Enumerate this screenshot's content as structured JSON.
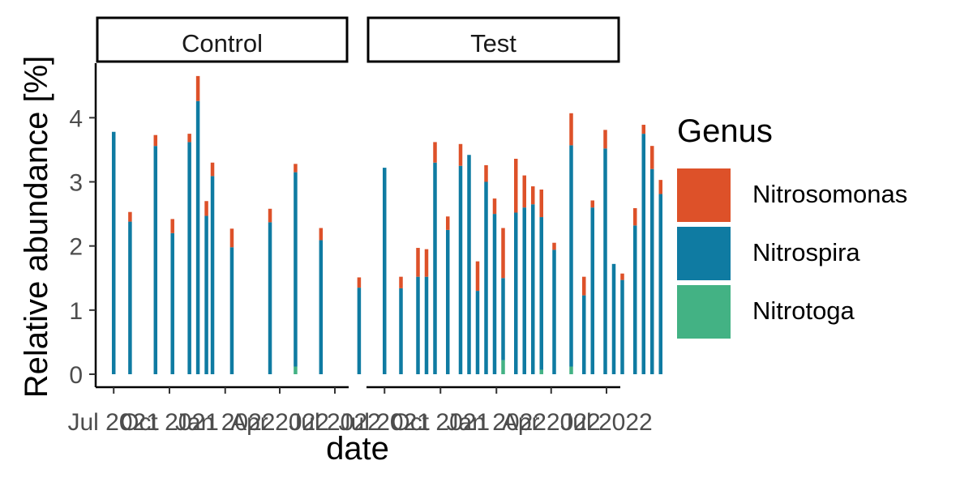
{
  "chart_data": {
    "type": "bar",
    "stacked": true,
    "ylabel": "Relative abundance [%]",
    "xlabel": "date",
    "ylim": [
      0,
      4.8
    ],
    "yticks": [
      0,
      1,
      2,
      3,
      4
    ],
    "xlim": [
      "2021-06-20",
      "2022-07-05"
    ],
    "xticks": [
      {
        "date": "2021-07-01",
        "label": "Jul 2021"
      },
      {
        "date": "2021-10-01",
        "label": "Oct 2021"
      },
      {
        "date": "2022-01-01",
        "label": "Jan 2022"
      },
      {
        "date": "2022-04-01",
        "label": "Apr 2022"
      },
      {
        "date": "2022-07-01",
        "label": "Jul 2022"
      }
    ],
    "grid": false,
    "legend_position": "right",
    "legend_title": "Genus",
    "series": [
      {
        "name": "Nitrosomonas",
        "color": "#DD5129"
      },
      {
        "name": "Nitrospira",
        "color": "#0F7BA2"
      },
      {
        "name": "Nitrotoga",
        "color": "#43B284"
      }
    ],
    "panels": [
      {
        "title": "Control",
        "bars": [
          {
            "date": "2021-07-01",
            "Nitrotoga": 0.0,
            "Nitrospira": 3.78,
            "Nitrosomonas": 0.0
          },
          {
            "date": "2021-07-28",
            "Nitrotoga": 0.0,
            "Nitrospira": 2.38,
            "Nitrosomonas": 0.15
          },
          {
            "date": "2021-09-08",
            "Nitrotoga": 0.0,
            "Nitrospira": 3.56,
            "Nitrosomonas": 0.17
          },
          {
            "date": "2021-10-06",
            "Nitrotoga": 0.0,
            "Nitrospira": 2.2,
            "Nitrosomonas": 0.22
          },
          {
            "date": "2021-11-03",
            "Nitrotoga": 0.0,
            "Nitrospira": 3.62,
            "Nitrosomonas": 0.13
          },
          {
            "date": "2021-11-17",
            "Nitrotoga": 0.0,
            "Nitrospira": 4.26,
            "Nitrosomonas": 0.39
          },
          {
            "date": "2021-12-01",
            "Nitrotoga": 0.0,
            "Nitrospira": 2.47,
            "Nitrosomonas": 0.23
          },
          {
            "date": "2021-12-11",
            "Nitrotoga": 0.0,
            "Nitrospira": 3.09,
            "Nitrosomonas": 0.21
          },
          {
            "date": "2022-01-12",
            "Nitrotoga": 0.0,
            "Nitrospira": 1.98,
            "Nitrosomonas": 0.29
          },
          {
            "date": "2022-03-16",
            "Nitrotoga": 0.0,
            "Nitrospira": 2.37,
            "Nitrosomonas": 0.21
          },
          {
            "date": "2022-04-27",
            "Nitrotoga": 0.12,
            "Nitrospira": 3.03,
            "Nitrosomonas": 0.13
          },
          {
            "date": "2022-06-08",
            "Nitrotoga": 0.0,
            "Nitrospira": 2.09,
            "Nitrosomonas": 0.19
          },
          {
            "date": "2022-08-10",
            "Nitrotoga": 0.0,
            "Nitrospira": 1.35,
            "Nitrosomonas": 0.16
          }
        ]
      },
      {
        "title": "Test",
        "bars": [
          {
            "date": "2021-07-01",
            "Nitrotoga": 0.0,
            "Nitrospira": 3.22,
            "Nitrosomonas": 0.0
          },
          {
            "date": "2021-07-28",
            "Nitrotoga": 0.0,
            "Nitrospira": 1.34,
            "Nitrosomonas": 0.18
          },
          {
            "date": "2021-08-25",
            "Nitrotoga": 0.0,
            "Nitrospira": 1.52,
            "Nitrosomonas": 0.45
          },
          {
            "date": "2021-09-08",
            "Nitrotoga": 0.0,
            "Nitrospira": 1.52,
            "Nitrosomonas": 0.43
          },
          {
            "date": "2021-09-22",
            "Nitrotoga": 0.0,
            "Nitrospira": 3.3,
            "Nitrosomonas": 0.32
          },
          {
            "date": "2021-10-13",
            "Nitrotoga": 0.0,
            "Nitrospira": 2.25,
            "Nitrosomonas": 0.21
          },
          {
            "date": "2021-11-03",
            "Nitrotoga": 0.0,
            "Nitrospira": 3.25,
            "Nitrosomonas": 0.34
          },
          {
            "date": "2021-11-17",
            "Nitrotoga": 0.0,
            "Nitrospira": 3.42,
            "Nitrosomonas": 0.0
          },
          {
            "date": "2021-12-01",
            "Nitrotoga": 0.0,
            "Nitrospira": 1.3,
            "Nitrosomonas": 0.46
          },
          {
            "date": "2021-12-15",
            "Nitrotoga": 0.0,
            "Nitrospira": 3.0,
            "Nitrosomonas": 0.26
          },
          {
            "date": "2021-12-29",
            "Nitrotoga": 0.0,
            "Nitrospira": 2.5,
            "Nitrosomonas": 0.24
          },
          {
            "date": "2022-01-12",
            "Nitrotoga": 0.22,
            "Nitrospira": 1.28,
            "Nitrosomonas": 0.78
          },
          {
            "date": "2022-02-02",
            "Nitrotoga": 0.0,
            "Nitrospira": 2.52,
            "Nitrosomonas": 0.84
          },
          {
            "date": "2022-02-16",
            "Nitrotoga": 0.0,
            "Nitrospira": 2.6,
            "Nitrosomonas": 0.5
          },
          {
            "date": "2022-03-02",
            "Nitrotoga": 0.0,
            "Nitrospira": 2.65,
            "Nitrosomonas": 0.28
          },
          {
            "date": "2022-03-16",
            "Nitrotoga": 0.07,
            "Nitrospira": 2.38,
            "Nitrosomonas": 0.43
          },
          {
            "date": "2022-04-06",
            "Nitrotoga": 0.0,
            "Nitrospira": 1.94,
            "Nitrosomonas": 0.11
          },
          {
            "date": "2022-05-04",
            "Nitrotoga": 0.12,
            "Nitrospira": 3.45,
            "Nitrosomonas": 0.5
          },
          {
            "date": "2022-05-25",
            "Nitrotoga": 0.0,
            "Nitrospira": 1.23,
            "Nitrosomonas": 0.29
          },
          {
            "date": "2022-06-08",
            "Nitrotoga": 0.0,
            "Nitrospira": 2.6,
            "Nitrosomonas": 0.11
          },
          {
            "date": "2022-06-29",
            "Nitrotoga": 0.0,
            "Nitrospira": 3.52,
            "Nitrosomonas": 0.29
          },
          {
            "date": "2022-07-13",
            "Nitrotoga": 0.0,
            "Nitrospira": 1.72,
            "Nitrosomonas": 0.0
          },
          {
            "date": "2022-07-27",
            "Nitrotoga": 0.0,
            "Nitrospira": 1.47,
            "Nitrosomonas": 0.1
          },
          {
            "date": "2022-08-17",
            "Nitrotoga": 0.0,
            "Nitrospira": 2.32,
            "Nitrosomonas": 0.27
          },
          {
            "date": "2022-08-31",
            "Nitrotoga": 0.0,
            "Nitrospira": 3.75,
            "Nitrosomonas": 0.14
          },
          {
            "date": "2022-09-14",
            "Nitrotoga": 0.0,
            "Nitrospira": 3.2,
            "Nitrosomonas": 0.36
          },
          {
            "date": "2022-09-28",
            "Nitrotoga": 0.0,
            "Nitrospira": 2.81,
            "Nitrosomonas": 0.22
          }
        ]
      }
    ]
  }
}
